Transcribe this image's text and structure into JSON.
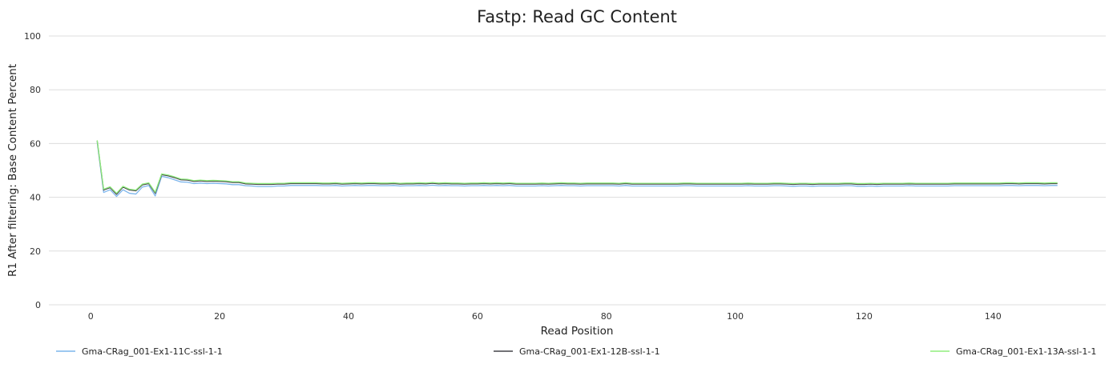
{
  "chart_data": {
    "type": "line",
    "title": "Fastp: Read GC Content",
    "xlabel": "Read Position",
    "ylabel": "R1 After filtering: Base Content Percent",
    "xlim": [
      -6.5,
      157.5
    ],
    "ylim": [
      0,
      100
    ],
    "xticks": [
      0,
      20,
      40,
      60,
      80,
      100,
      120,
      140
    ],
    "yticks": [
      0,
      20,
      40,
      60,
      80,
      100
    ],
    "grid": true,
    "legend_position": "bottom",
    "x": [
      1,
      2,
      3,
      4,
      5,
      6,
      7,
      8,
      9,
      10,
      11,
      12,
      13,
      14,
      15,
      16,
      17,
      18,
      19,
      20,
      21,
      22,
      23,
      24,
      25,
      26,
      27,
      28,
      29,
      30,
      31,
      32,
      33,
      34,
      35,
      36,
      37,
      38,
      39,
      40,
      41,
      42,
      43,
      44,
      45,
      46,
      47,
      48,
      49,
      50,
      51,
      52,
      53,
      54,
      55,
      56,
      57,
      58,
      59,
      60,
      61,
      62,
      63,
      64,
      65,
      66,
      67,
      68,
      69,
      70,
      71,
      72,
      73,
      74,
      75,
      76,
      77,
      78,
      79,
      80,
      81,
      82,
      83,
      84,
      85,
      86,
      87,
      88,
      89,
      90,
      91,
      92,
      93,
      94,
      95,
      96,
      97,
      98,
      99,
      100,
      101,
      102,
      103,
      104,
      105,
      106,
      107,
      108,
      109,
      110,
      111,
      112,
      113,
      114,
      115,
      116,
      117,
      118,
      119,
      120,
      121,
      122,
      123,
      124,
      125,
      126,
      127,
      128,
      129,
      130,
      131,
      132,
      133,
      134,
      135,
      136,
      137,
      138,
      139,
      140,
      141,
      142,
      143,
      144,
      145,
      146,
      147,
      148,
      149,
      150
    ],
    "series": [
      {
        "name": "Gma-CRag_001-Ex1-11C-ssl-1-1",
        "color": "#7cb5ec",
        "values": [
          60.5,
          41.8,
          42.8,
          40.3,
          42.8,
          41.5,
          41.2,
          43.8,
          44.4,
          40.5,
          47.8,
          47.3,
          46.5,
          45.7,
          45.6,
          45.1,
          45.3,
          45.1,
          45.2,
          45.1,
          45.0,
          44.7,
          44.7,
          44.3,
          44.2,
          44.0,
          44.0,
          44.0,
          44.2,
          44.2,
          44.4,
          44.4,
          44.4,
          44.4,
          44.4,
          44.3,
          44.3,
          44.4,
          44.2,
          44.3,
          44.4,
          44.3,
          44.4,
          44.4,
          44.3,
          44.3,
          44.4,
          44.2,
          44.3,
          44.3,
          44.4,
          44.3,
          44.5,
          44.3,
          44.4,
          44.3,
          44.3,
          44.2,
          44.3,
          44.3,
          44.4,
          44.3,
          44.4,
          44.3,
          44.4,
          44.2,
          44.2,
          44.2,
          44.2,
          44.3,
          44.2,
          44.3,
          44.4,
          44.3,
          44.3,
          44.2,
          44.3,
          44.3,
          44.3,
          44.3,
          44.3,
          44.2,
          44.4,
          44.2,
          44.2,
          44.2,
          44.2,
          44.2,
          44.2,
          44.2,
          44.2,
          44.3,
          44.3,
          44.2,
          44.2,
          44.2,
          44.2,
          44.2,
          44.2,
          44.2,
          44.2,
          44.3,
          44.2,
          44.2,
          44.2,
          44.3,
          44.3,
          44.2,
          44.1,
          44.2,
          44.2,
          44.1,
          44.2,
          44.2,
          44.2,
          44.2,
          44.3,
          44.3,
          44.1,
          44.1,
          44.2,
          44.1,
          44.2,
          44.2,
          44.2,
          44.2,
          44.3,
          44.2,
          44.2,
          44.2,
          44.2,
          44.2,
          44.2,
          44.3,
          44.3,
          44.3,
          44.3,
          44.3,
          44.3,
          44.3,
          44.3,
          44.4,
          44.4,
          44.3,
          44.4,
          44.4,
          44.4,
          44.3,
          44.4,
          44.4
        ]
      },
      {
        "name": "Gma-CRag_001-Ex1-12B-ssl-1-1",
        "color": "#434348",
        "values": [
          61.0,
          42.7,
          43.6,
          41.1,
          43.8,
          42.7,
          42.4,
          44.6,
          45.1,
          41.5,
          48.4,
          48.0,
          47.3,
          46.5,
          46.4,
          45.9,
          46.1,
          45.9,
          46.0,
          45.9,
          45.8,
          45.5,
          45.5,
          45.0,
          44.9,
          44.8,
          44.8,
          44.8,
          44.9,
          44.9,
          45.1,
          45.1,
          45.1,
          45.1,
          45.1,
          45.0,
          45.0,
          45.1,
          44.9,
          45.0,
          45.1,
          45.0,
          45.1,
          45.1,
          45.0,
          45.0,
          45.1,
          44.9,
          45.0,
          45.0,
          45.1,
          45.0,
          45.2,
          45.0,
          45.1,
          45.0,
          45.0,
          44.9,
          45.0,
          45.0,
          45.1,
          45.0,
          45.1,
          45.0,
          45.1,
          44.9,
          44.9,
          44.9,
          44.9,
          45.0,
          44.9,
          45.0,
          45.1,
          45.0,
          45.0,
          44.9,
          45.0,
          45.0,
          45.0,
          45.0,
          45.0,
          44.9,
          45.1,
          44.9,
          44.9,
          44.9,
          44.9,
          44.9,
          44.9,
          44.9,
          44.9,
          45.0,
          45.0,
          44.9,
          44.9,
          44.9,
          44.9,
          44.9,
          44.9,
          44.9,
          44.9,
          45.0,
          44.9,
          44.9,
          44.9,
          45.0,
          45.0,
          44.9,
          44.8,
          44.9,
          44.9,
          44.8,
          44.9,
          44.9,
          44.9,
          44.9,
          45.0,
          45.0,
          44.8,
          44.8,
          44.9,
          44.8,
          44.9,
          44.9,
          44.9,
          44.9,
          45.0,
          44.9,
          44.9,
          44.9,
          44.9,
          44.9,
          44.9,
          45.0,
          45.0,
          45.0,
          45.0,
          45.0,
          45.0,
          45.0,
          45.0,
          45.1,
          45.1,
          45.0,
          45.1,
          45.1,
          45.1,
          45.0,
          45.1,
          45.1
        ]
      },
      {
        "name": "Gma-CRag_001-Ex1-13A-ssl-1-1",
        "color": "#90ed7d",
        "values": [
          61.2,
          43.0,
          43.9,
          41.5,
          44.1,
          43.0,
          42.7,
          44.9,
          45.4,
          41.9,
          48.7,
          48.3,
          47.6,
          46.8,
          46.7,
          46.2,
          46.4,
          46.2,
          46.3,
          46.2,
          46.1,
          45.8,
          45.8,
          45.3,
          45.2,
          45.1,
          45.1,
          45.1,
          45.2,
          45.2,
          45.4,
          45.4,
          45.4,
          45.4,
          45.4,
          45.3,
          45.3,
          45.4,
          45.2,
          45.3,
          45.4,
          45.3,
          45.4,
          45.4,
          45.3,
          45.3,
          45.4,
          45.2,
          45.3,
          45.3,
          45.4,
          45.3,
          45.5,
          45.3,
          45.4,
          45.3,
          45.3,
          45.2,
          45.3,
          45.3,
          45.4,
          45.3,
          45.4,
          45.3,
          45.4,
          45.2,
          45.2,
          45.2,
          45.2,
          45.3,
          45.2,
          45.3,
          45.4,
          45.3,
          45.3,
          45.2,
          45.3,
          45.3,
          45.3,
          45.3,
          45.3,
          45.2,
          45.4,
          45.2,
          45.2,
          45.2,
          45.2,
          45.2,
          45.2,
          45.2,
          45.2,
          45.3,
          45.3,
          45.2,
          45.2,
          45.2,
          45.2,
          45.2,
          45.2,
          45.2,
          45.2,
          45.3,
          45.2,
          45.2,
          45.2,
          45.3,
          45.3,
          45.2,
          45.1,
          45.2,
          45.2,
          45.1,
          45.2,
          45.2,
          45.2,
          45.2,
          45.3,
          45.3,
          45.1,
          45.1,
          45.2,
          45.1,
          45.2,
          45.2,
          45.2,
          45.2,
          45.3,
          45.2,
          45.2,
          45.2,
          45.2,
          45.2,
          45.2,
          45.3,
          45.3,
          45.3,
          45.3,
          45.3,
          45.3,
          45.3,
          45.3,
          45.4,
          45.4,
          45.3,
          45.4,
          45.4,
          45.4,
          45.3,
          45.4,
          45.4
        ]
      }
    ]
  }
}
